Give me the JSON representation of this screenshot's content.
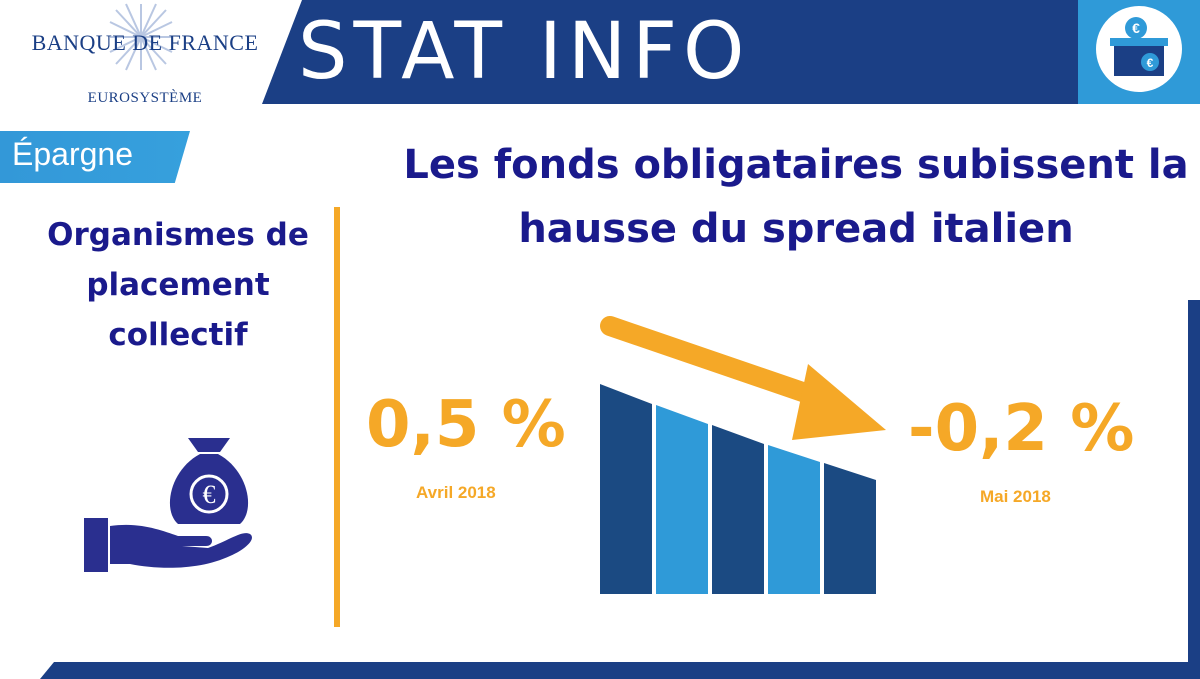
{
  "logo": {
    "name": "BANQUE DE FRANCE",
    "subtitle": "EUROSYSTÈME"
  },
  "header": {
    "title": "STAT INFO"
  },
  "category": {
    "label": "Épargne"
  },
  "left": {
    "heading": "Organismes de placement collectif"
  },
  "headline": "Les fonds obligataires subissent la hausse du spread italien",
  "figures": {
    "start": {
      "value": "0,5 %",
      "date": "Avril 2018"
    },
    "end": {
      "value": "-0,2 %",
      "date": "Mai 2018"
    }
  },
  "colors": {
    "navy": "#1b3f85",
    "blue": "#2f9ad8",
    "orange": "#f5a827",
    "text_navy": "#1a1a8c"
  },
  "icons": [
    "euro-ballot-box-icon",
    "money-bag-hand-icon",
    "decline-arrow-icon"
  ]
}
